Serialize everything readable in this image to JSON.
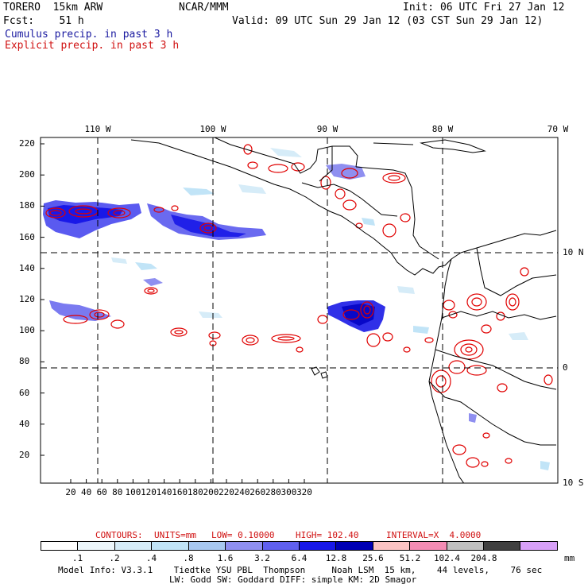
{
  "header": {
    "model": "TORERO  15km ARW",
    "org": "NCAR/MMM",
    "init": "Init: 06 UTC Fri 27 Jan 12",
    "fcst": "Fcst:    51 h",
    "valid": "Valid: 09 UTC Sun 29 Jan 12 (03 CST Sun 29 Jan 12)",
    "cumulus": "Cumulus precip. in past 3 h",
    "explicit": "Explicit precip. in past 3 h"
  },
  "axes": {
    "top_lon_labels": [
      "110 W",
      "100 W",
      "90 W",
      "80 W",
      "70 W"
    ],
    "right_lat_labels": [
      "10 N",
      "0",
      "10 S"
    ],
    "y_ticks": [
      "220",
      "200",
      "180",
      "160",
      "140",
      "120",
      "100",
      "80",
      "60",
      "40",
      "20"
    ],
    "x_ticks": [
      "20",
      "40",
      "60",
      "80",
      "100",
      "120",
      "140",
      "160",
      "180",
      "200",
      "220",
      "240",
      "260",
      "280",
      "300",
      "320"
    ]
  },
  "contours_line": {
    "label": "CONTOURS:",
    "units": "UNITS=mm",
    "low": "LOW= 0.10000",
    "high": "HIGH= 102.40",
    "interval": "INTERVAL=X  4.0000"
  },
  "legend": {
    "colors": [
      "#ffffff",
      "#ecf6fb",
      "#d6ecf8",
      "#c1e4f7",
      "#a8c8f0",
      "#8f8ff0",
      "#6060ef",
      "#1818e8",
      "#0000b4",
      "#fbc4c4",
      "#f38cb4",
      "#c0c0c0",
      "#404040",
      "#d8a0f8"
    ],
    "labels": [
      ".1",
      ".2",
      ".4",
      ".8",
      "1.6",
      "3.2",
      "6.4",
      "12.8",
      "25.6",
      "51.2",
      "102.4",
      "204.8"
    ],
    "unit": "mm"
  },
  "footer": {
    "line1": "Model Info: V3.3.1    Tiedtke YSU PBL  Thompson     Noah LSM  15 km,    44 levels,    76 sec",
    "line2": "LW: Godd SW: Goddard DIFF: simple KM: 2D Smagor"
  },
  "colors": {
    "cumulus": "#1a1aa0",
    "explicit": "#d01010",
    "contour": "#e00000"
  }
}
